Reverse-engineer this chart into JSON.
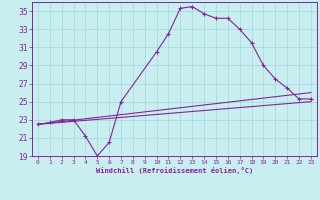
{
  "xlabel": "Windchill (Refroidissement éolien,°C)",
  "background_color": "#c8eef0",
  "grid_color": "#a0d8e0",
  "line_color": "#882299",
  "xlim": [
    -0.5,
    23.5
  ],
  "ylim": [
    19,
    36
  ],
  "xticks": [
    0,
    1,
    2,
    3,
    4,
    5,
    6,
    7,
    8,
    9,
    10,
    11,
    12,
    13,
    14,
    15,
    16,
    17,
    18,
    19,
    20,
    21,
    22,
    23
  ],
  "yticks": [
    19,
    21,
    23,
    25,
    27,
    29,
    31,
    33,
    35
  ],
  "line1_x": [
    0,
    1,
    2,
    3,
    4,
    5,
    6,
    7,
    10,
    11,
    12,
    13,
    14,
    15,
    16,
    17,
    18,
    19,
    20,
    21,
    22,
    23
  ],
  "line1_y": [
    22.5,
    22.7,
    23.0,
    23.0,
    21.2,
    19.0,
    20.5,
    25.0,
    30.5,
    32.5,
    35.3,
    35.5,
    34.7,
    34.2,
    34.2,
    33.0,
    31.5,
    29.0,
    27.5,
    26.5,
    25.3,
    25.3
  ],
  "line2_x": [
    0,
    23
  ],
  "line2_y": [
    22.5,
    26.0
  ],
  "line3_x": [
    0,
    23
  ],
  "line3_y": [
    22.5,
    25.0
  ],
  "figsize": [
    3.2,
    2.0
  ],
  "dpi": 100
}
